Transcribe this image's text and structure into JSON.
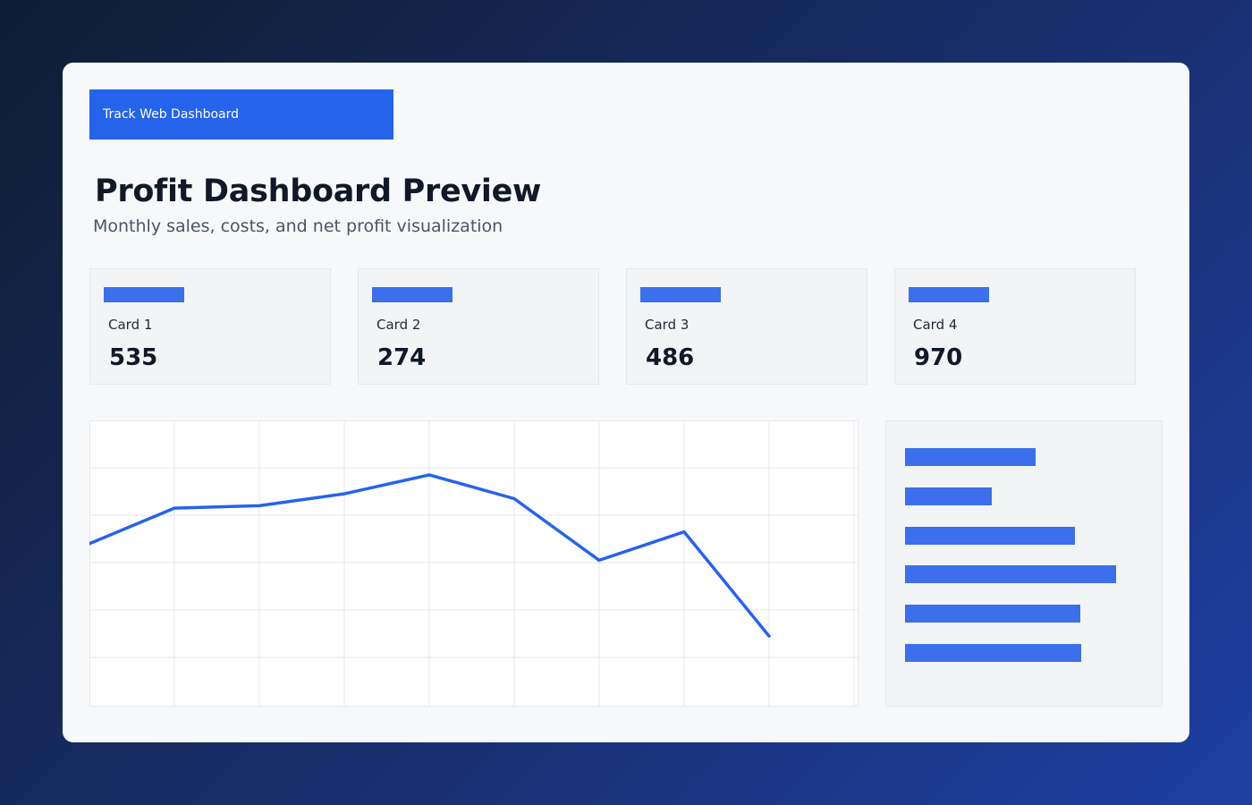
{
  "brand": {
    "label": "Track Web Dashboard"
  },
  "header": {
    "title": "Profit Dashboard Preview",
    "subtitle": "Monthly sales, costs, and net profit visualization"
  },
  "cards": [
    {
      "label": "Card 1",
      "value": "535"
    },
    {
      "label": "Card 2",
      "value": "274"
    },
    {
      "label": "Card 3",
      "value": "486"
    },
    {
      "label": "Card 4",
      "value": "970"
    }
  ],
  "colors": {
    "accent": "#2563eb",
    "bar": "#3b6feb",
    "grid": "#e5e7eb",
    "line": "#2563eb"
  },
  "chart_data": [
    {
      "type": "line",
      "x": [
        0,
        1,
        2,
        3,
        4,
        5,
        6,
        7,
        8
      ],
      "series": [
        {
          "values": [
            34,
            41.5,
            42,
            44.5,
            48.5,
            43.5,
            30.5,
            36.5,
            14.5
          ]
        }
      ],
      "ylim": [
        0,
        60
      ],
      "grid": true
    },
    {
      "type": "bar",
      "orientation": "horizontal",
      "values": [
        146,
        97,
        190,
        236,
        196,
        197
      ]
    }
  ]
}
